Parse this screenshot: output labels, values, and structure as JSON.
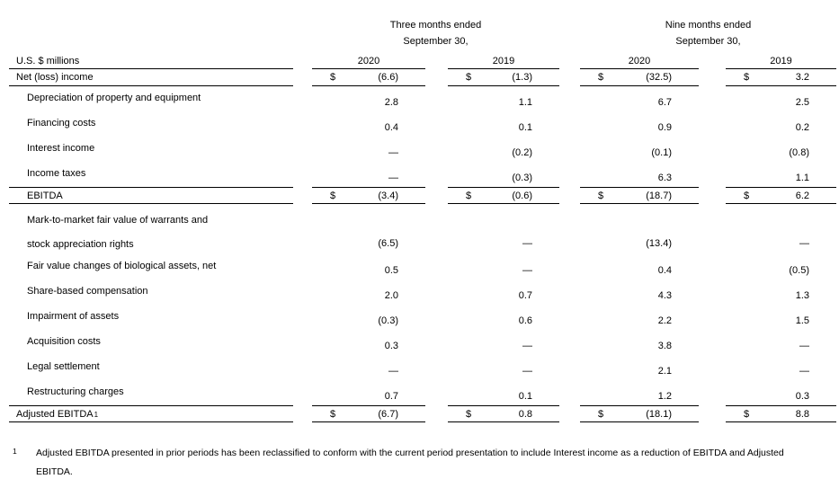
{
  "table": {
    "unit_label": "U.S. $ millions",
    "currency_symbol": "$",
    "period_groups": [
      {
        "title": "Three months ended",
        "subtitle": "September 30,"
      },
      {
        "title": "Nine months ended",
        "subtitle": "September 30,"
      }
    ],
    "year_headers": [
      "2020",
      "2019",
      "2020",
      "2019"
    ],
    "rows": [
      {
        "type": "total",
        "indent": false,
        "dollar": true,
        "border_top": false,
        "border_bottom": true,
        "footnote_ref": "",
        "label_lines": [
          "Net (loss) income"
        ],
        "values": [
          "(6.6)",
          "(1.3)",
          "(32.5)",
          "3.2"
        ]
      },
      {
        "type": "item",
        "indent": true,
        "dollar": false,
        "border_top": false,
        "border_bottom": false,
        "footnote_ref": "",
        "label_lines": [
          "Depreciation of property and equipment"
        ],
        "values": [
          "2.8",
          "1.1",
          "6.7",
          "2.5"
        ]
      },
      {
        "type": "item",
        "indent": true,
        "dollar": false,
        "border_top": false,
        "border_bottom": false,
        "footnote_ref": "",
        "label_lines": [
          "Financing costs"
        ],
        "values": [
          "0.4",
          "0.1",
          "0.9",
          "0.2"
        ]
      },
      {
        "type": "item",
        "indent": true,
        "dollar": false,
        "border_top": false,
        "border_bottom": false,
        "footnote_ref": "",
        "label_lines": [
          "Interest income"
        ],
        "values": [
          "—",
          "(0.2)",
          "(0.1)",
          "(0.8)"
        ]
      },
      {
        "type": "item",
        "indent": true,
        "dollar": false,
        "border_top": false,
        "border_bottom": false,
        "footnote_ref": "",
        "label_lines": [
          "Income taxes"
        ],
        "values": [
          "—",
          "(0.3)",
          "6.3",
          "1.1"
        ]
      },
      {
        "type": "total",
        "indent": true,
        "dollar": true,
        "border_top": true,
        "border_bottom": true,
        "footnote_ref": "",
        "label_lines": [
          "EBITDA"
        ],
        "values": [
          "(3.4)",
          "(0.6)",
          "(18.7)",
          "6.2"
        ]
      },
      {
        "type": "item2",
        "indent": true,
        "dollar": false,
        "border_top": false,
        "border_bottom": false,
        "footnote_ref": "",
        "label_lines": [
          "Mark-to-market fair value of warrants and",
          "stock appreciation rights"
        ],
        "values": [
          "(6.5)",
          "—",
          "(13.4)",
          "—"
        ]
      },
      {
        "type": "item",
        "indent": true,
        "dollar": false,
        "border_top": false,
        "border_bottom": false,
        "footnote_ref": "",
        "label_lines": [
          "Fair value changes of biological assets, net"
        ],
        "values": [
          "0.5",
          "—",
          "0.4",
          "(0.5)"
        ]
      },
      {
        "type": "item",
        "indent": true,
        "dollar": false,
        "border_top": false,
        "border_bottom": false,
        "footnote_ref": "",
        "label_lines": [
          "Share-based compensation"
        ],
        "values": [
          "2.0",
          "0.7",
          "4.3",
          "1.3"
        ]
      },
      {
        "type": "item",
        "indent": true,
        "dollar": false,
        "border_top": false,
        "border_bottom": false,
        "footnote_ref": "",
        "label_lines": [
          "Impairment of assets"
        ],
        "values": [
          "(0.3)",
          "0.6",
          "2.2",
          "1.5"
        ]
      },
      {
        "type": "item",
        "indent": true,
        "dollar": false,
        "border_top": false,
        "border_bottom": false,
        "footnote_ref": "",
        "label_lines": [
          "Acquisition costs"
        ],
        "values": [
          "0.3",
          "—",
          "3.8",
          "—"
        ]
      },
      {
        "type": "item",
        "indent": true,
        "dollar": false,
        "border_top": false,
        "border_bottom": false,
        "footnote_ref": "",
        "label_lines": [
          "Legal settlement"
        ],
        "values": [
          "—",
          "—",
          "2.1",
          "—"
        ]
      },
      {
        "type": "item",
        "indent": true,
        "dollar": false,
        "border_top": false,
        "border_bottom": false,
        "footnote_ref": "",
        "label_lines": [
          "Restructuring charges"
        ],
        "values": [
          "0.7",
          "0.1",
          "1.2",
          "0.3"
        ]
      },
      {
        "type": "total",
        "indent": false,
        "dollar": true,
        "border_top": true,
        "border_bottom": true,
        "footnote_ref": "1",
        "label_lines": [
          "Adjusted EBITDA"
        ],
        "values": [
          "(6.7)",
          "0.8",
          "(18.1)",
          "8.8"
        ]
      }
    ]
  },
  "footnote": {
    "marker": "1",
    "text": "Adjusted EBITDA presented in prior periods has been reclassified to conform with the current period presentation to include Interest income as a reduction of EBITDA and Adjusted EBITDA."
  }
}
